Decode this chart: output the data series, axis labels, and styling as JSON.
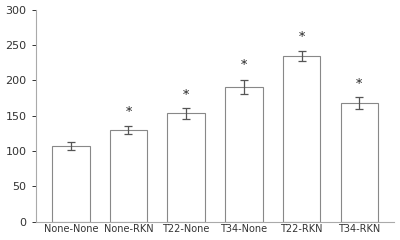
{
  "categories": [
    "None-None",
    "None-RKN",
    "T22-None",
    "T34-None",
    "T22-RKN",
    "T34-RKN"
  ],
  "values": [
    107,
    130,
    153,
    191,
    234,
    168
  ],
  "errors": [
    6,
    6,
    8,
    10,
    7,
    8
  ],
  "star_offsets": [
    null,
    18,
    18,
    20,
    20,
    18
  ],
  "ylim": [
    0,
    300
  ],
  "yticks": [
    0,
    50,
    100,
    150,
    200,
    250,
    300
  ],
  "bar_color": "#ffffff",
  "bar_edgecolor": "#888888",
  "error_color": "#555555",
  "star_color": "#222222",
  "background_color": "#ffffff",
  "bar_width": 0.65,
  "figsize": [
    4.0,
    2.4
  ],
  "dpi": 100,
  "spine_color": "#aaaaaa",
  "tick_color": "#888888",
  "label_fontsize": 7.0,
  "ytick_fontsize": 8.0,
  "star_fontsize": 9
}
